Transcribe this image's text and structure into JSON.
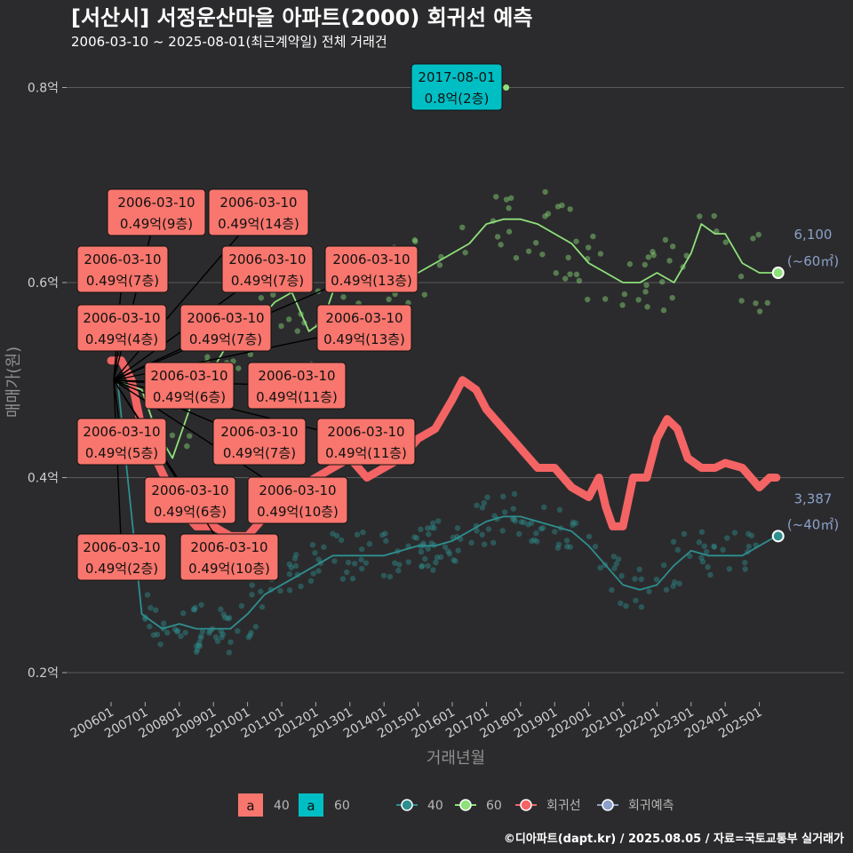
{
  "title": "[서산시] 서정운산마을 아파트(2000) 회귀선 예측",
  "subtitle": "2006-03-10 ~ 2025-08-01(최근계약일) 전체 거래건",
  "caption": "©디아파트(dapt.kr) / 2025.08.05 / 자료=국토교통부 실거래가",
  "chart_data": {
    "type": "line",
    "xlabel": "거래년월",
    "ylabel": "매매가(원)",
    "x_range": [
      2006.0,
      2025.7
    ],
    "y_range": [
      0.18,
      0.82
    ],
    "y_ticks": [
      {
        "value": 0.2,
        "label": "0.2억"
      },
      {
        "value": 0.4,
        "label": "0.4억"
      },
      {
        "value": 0.6,
        "label": "0.6억"
      },
      {
        "value": 0.8,
        "label": "0.8억"
      }
    ],
    "x_ticks": [
      {
        "value": 2006.0,
        "label": "200601"
      },
      {
        "value": 2007.0,
        "label": "200701"
      },
      {
        "value": 2008.0,
        "label": "200801"
      },
      {
        "value": 2009.0,
        "label": "200901"
      },
      {
        "value": 2010.0,
        "label": "201001"
      },
      {
        "value": 2011.0,
        "label": "201101"
      },
      {
        "value": 2012.0,
        "label": "201201"
      },
      {
        "value": 2013.0,
        "label": "201301"
      },
      {
        "value": 2014.0,
        "label": "201401"
      },
      {
        "value": 2015.0,
        "label": "201501"
      },
      {
        "value": 2016.0,
        "label": "201601"
      },
      {
        "value": 2017.0,
        "label": "201701"
      },
      {
        "value": 2018.0,
        "label": "201801"
      },
      {
        "value": 2019.0,
        "label": "201901"
      },
      {
        "value": 2020.0,
        "label": "202001"
      },
      {
        "value": 2021.0,
        "label": "202101"
      },
      {
        "value": 2022.0,
        "label": "202201"
      },
      {
        "value": 2023.0,
        "label": "202301"
      },
      {
        "value": 2024.0,
        "label": "202401"
      },
      {
        "value": 2025.0,
        "label": "202501"
      }
    ],
    "colors": {
      "s40": "#2e8f8f",
      "s60": "#8fe07a",
      "regression": "#f46464",
      "forecast": "#8ba0c8",
      "box40": "#f8766d",
      "box60": "#00bfc4",
      "grid": "#5a5a5a",
      "leader": "#000000"
    },
    "series": [
      {
        "name": "40",
        "points": [
          [
            2006.19,
            0.5
          ],
          [
            2006.9,
            0.26
          ],
          [
            2007.5,
            0.245
          ],
          [
            2008.0,
            0.25
          ],
          [
            2008.5,
            0.245
          ],
          [
            2009.0,
            0.245
          ],
          [
            2009.5,
            0.245
          ],
          [
            2010.0,
            0.26
          ],
          [
            2010.5,
            0.28
          ],
          [
            2011.0,
            0.29
          ],
          [
            2011.5,
            0.3
          ],
          [
            2012.0,
            0.31
          ],
          [
            2012.5,
            0.32
          ],
          [
            2013.0,
            0.32
          ],
          [
            2013.5,
            0.32
          ],
          [
            2014.0,
            0.32
          ],
          [
            2014.5,
            0.325
          ],
          [
            2015.0,
            0.33
          ],
          [
            2015.5,
            0.33
          ],
          [
            2016.0,
            0.335
          ],
          [
            2016.5,
            0.345
          ],
          [
            2017.0,
            0.355
          ],
          [
            2017.5,
            0.36
          ],
          [
            2018.0,
            0.36
          ],
          [
            2018.5,
            0.355
          ],
          [
            2019.0,
            0.35
          ],
          [
            2019.5,
            0.345
          ],
          [
            2020.0,
            0.33
          ],
          [
            2020.5,
            0.31
          ],
          [
            2021.0,
            0.29
          ],
          [
            2021.5,
            0.285
          ],
          [
            2022.0,
            0.29
          ],
          [
            2022.5,
            0.31
          ],
          [
            2023.0,
            0.325
          ],
          [
            2023.5,
            0.32
          ],
          [
            2024.0,
            0.32
          ],
          [
            2024.5,
            0.32
          ],
          [
            2025.0,
            0.33
          ],
          [
            2025.5,
            0.34
          ]
        ]
      },
      {
        "name": "60",
        "points": [
          [
            2006.19,
            0.5
          ],
          [
            2006.9,
            0.49
          ],
          [
            2007.3,
            0.45
          ],
          [
            2007.8,
            0.42
          ],
          [
            2008.3,
            0.47
          ],
          [
            2008.8,
            0.5
          ],
          [
            2009.3,
            0.53
          ],
          [
            2009.8,
            0.54
          ],
          [
            2010.3,
            0.56
          ],
          [
            2010.8,
            0.58
          ],
          [
            2011.3,
            0.59
          ],
          [
            2011.8,
            0.55
          ],
          [
            2012.2,
            0.56
          ],
          [
            2012.6,
            0.6
          ],
          [
            2013.0,
            0.6
          ],
          [
            2013.5,
            0.62
          ],
          [
            2014.0,
            0.6
          ],
          [
            2014.5,
            0.61
          ],
          [
            2015.0,
            0.61
          ],
          [
            2015.5,
            0.62
          ],
          [
            2016.0,
            0.63
          ],
          [
            2016.5,
            0.64
          ],
          [
            2017.0,
            0.66
          ],
          [
            2017.5,
            0.665
          ],
          [
            2018.0,
            0.665
          ],
          [
            2018.5,
            0.66
          ],
          [
            2019.0,
            0.65
          ],
          [
            2019.5,
            0.64
          ],
          [
            2020.0,
            0.62
          ],
          [
            2020.5,
            0.61
          ],
          [
            2021.0,
            0.6
          ],
          [
            2021.5,
            0.6
          ],
          [
            2022.0,
            0.61
          ],
          [
            2022.5,
            0.6
          ],
          [
            2023.0,
            0.63
          ],
          [
            2023.3,
            0.66
          ],
          [
            2023.7,
            0.65
          ],
          [
            2024.0,
            0.65
          ],
          [
            2024.5,
            0.62
          ],
          [
            2025.0,
            0.61
          ],
          [
            2025.5,
            0.61
          ]
        ]
      },
      {
        "name": "회귀선",
        "points": [
          [
            2006.0,
            0.52
          ],
          [
            2006.3,
            0.52
          ],
          [
            2006.6,
            0.5
          ],
          [
            2006.9,
            0.45
          ],
          [
            2007.3,
            0.42
          ],
          [
            2007.7,
            0.39
          ],
          [
            2008.0,
            0.37
          ],
          [
            2008.5,
            0.35
          ],
          [
            2009.0,
            0.35
          ],
          [
            2009.5,
            0.34
          ],
          [
            2010.0,
            0.34
          ],
          [
            2010.5,
            0.36
          ],
          [
            2011.0,
            0.38
          ],
          [
            2011.5,
            0.39
          ],
          [
            2012.0,
            0.4
          ],
          [
            2012.5,
            0.41
          ],
          [
            2013.0,
            0.42
          ],
          [
            2013.5,
            0.4
          ],
          [
            2014.0,
            0.41
          ],
          [
            2014.5,
            0.42
          ],
          [
            2015.0,
            0.44
          ],
          [
            2015.5,
            0.45
          ],
          [
            2016.0,
            0.48
          ],
          [
            2016.3,
            0.5
          ],
          [
            2016.7,
            0.49
          ],
          [
            2017.0,
            0.47
          ],
          [
            2017.5,
            0.45
          ],
          [
            2018.0,
            0.43
          ],
          [
            2018.5,
            0.41
          ],
          [
            2019.0,
            0.41
          ],
          [
            2019.5,
            0.39
          ],
          [
            2020.0,
            0.38
          ],
          [
            2020.3,
            0.4
          ],
          [
            2020.5,
            0.37
          ],
          [
            2020.7,
            0.35
          ],
          [
            2021.0,
            0.35
          ],
          [
            2021.3,
            0.4
          ],
          [
            2021.7,
            0.4
          ],
          [
            2022.0,
            0.44
          ],
          [
            2022.3,
            0.46
          ],
          [
            2022.6,
            0.45
          ],
          [
            2022.9,
            0.42
          ],
          [
            2023.3,
            0.41
          ],
          [
            2023.7,
            0.41
          ],
          [
            2024.0,
            0.415
          ],
          [
            2024.5,
            0.41
          ],
          [
            2025.0,
            0.39
          ],
          [
            2025.3,
            0.4
          ],
          [
            2025.5,
            0.4
          ]
        ]
      },
      {
        "name": "회귀예측",
        "points": []
      }
    ],
    "end_labels": [
      {
        "series": "60",
        "x": 2025.55,
        "y": 0.61,
        "price": "6,100",
        "area": "(~60㎡)"
      },
      {
        "series": "40",
        "x": 2025.55,
        "y": 0.34,
        "price": "3,387",
        "area": "(~40㎡)"
      }
    ],
    "annotations": [
      {
        "date": "2017-08-01",
        "value": "0.8억(2층)",
        "group": "60"
      },
      {
        "date": "2006-03-10",
        "value": "0.49억(9층)",
        "group": "40"
      },
      {
        "date": "2006-03-10",
        "value": "0.49억(14층)",
        "group": "40"
      },
      {
        "date": "2006-03-10",
        "value": "0.49억(7층)",
        "group": "40"
      },
      {
        "date": "2006-03-10",
        "value": "0.49억(7층)",
        "group": "40"
      },
      {
        "date": "2006-03-10",
        "value": "0.49억(13층)",
        "group": "40"
      },
      {
        "date": "2006-03-10",
        "value": "0.49억(4층)",
        "group": "40"
      },
      {
        "date": "2006-03-10",
        "value": "0.49억(7층)",
        "group": "40"
      },
      {
        "date": "2006-03-10",
        "value": "0.49억(13층)",
        "group": "40"
      },
      {
        "date": "2006-03-10",
        "value": "0.49억(6층)",
        "group": "40"
      },
      {
        "date": "2006-03-10",
        "value": "0.49억(11층)",
        "group": "40"
      },
      {
        "date": "2006-03-10",
        "value": "0.49억(5층)",
        "group": "40"
      },
      {
        "date": "2006-03-10",
        "value": "0.49억(7층)",
        "group": "40"
      },
      {
        "date": "2006-03-10",
        "value": "0.49억(11층)",
        "group": "40"
      },
      {
        "date": "2006-03-10",
        "value": "0.49억(6층)",
        "group": "40"
      },
      {
        "date": "2006-03-10",
        "value": "0.49억(10층)",
        "group": "40"
      },
      {
        "date": "2006-03-10",
        "value": "0.49억(2층)",
        "group": "40"
      },
      {
        "date": "2006-03-10",
        "value": "0.49억(10층)",
        "group": "40"
      }
    ],
    "legend": {
      "placement": "bottom",
      "fill_items": [
        {
          "glyph": "a",
          "label": "40"
        },
        {
          "glyph": "a",
          "label": "60"
        }
      ],
      "line_items": [
        {
          "label": "40"
        },
        {
          "label": "60"
        },
        {
          "label": "회귀선"
        },
        {
          "label": "회귀예측"
        }
      ]
    }
  }
}
